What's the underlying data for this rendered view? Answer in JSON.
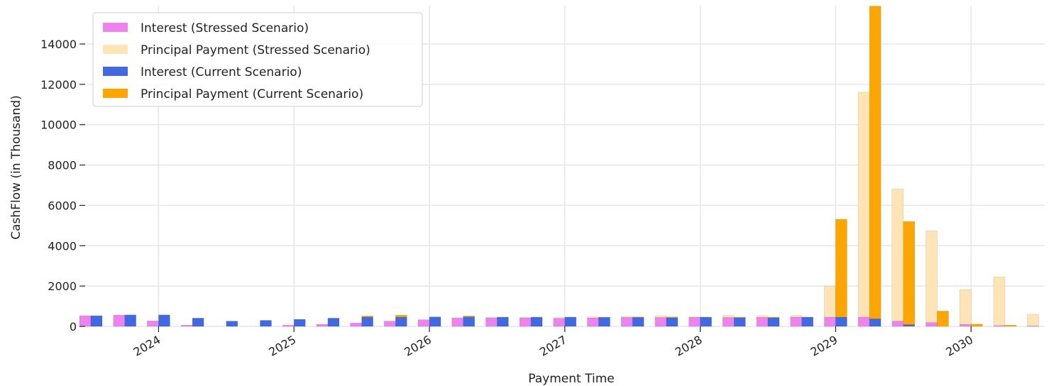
{
  "chart_data": {
    "type": "bar",
    "title": "",
    "xlabel": "Payment Time",
    "ylabel": "CashFlow (in Thousand)",
    "ylim": [
      0,
      15900
    ],
    "yticks": [
      0,
      2000,
      4000,
      6000,
      8000,
      10000,
      12000,
      14000
    ],
    "xticks": [
      "2024",
      "2025",
      "2026",
      "2027",
      "2028",
      "2029",
      "2030"
    ],
    "grid": true,
    "legend_position": "top-left",
    "x": [
      "2023-07",
      "2023-10",
      "2024-01",
      "2024-04",
      "2024-07",
      "2024-10",
      "2025-01",
      "2025-04",
      "2025-07",
      "2025-10",
      "2026-01",
      "2026-04",
      "2026-07",
      "2026-10",
      "2027-01",
      "2027-04",
      "2027-07",
      "2027-10",
      "2028-01",
      "2028-04",
      "2028-07",
      "2028-10",
      "2029-01",
      "2029-04",
      "2029-07",
      "2029-10",
      "2030-01",
      "2030-04",
      "2030-07"
    ],
    "series": [
      {
        "name": "Interest (Stressed Scenario)",
        "color": "#ee82ee",
        "stack": "stressed",
        "values": [
          530,
          560,
          270,
          60,
          0,
          0,
          60,
          100,
          170,
          260,
          330,
          410,
          420,
          420,
          400,
          420,
          440,
          440,
          450,
          440,
          450,
          460,
          460,
          460,
          260,
          190,
          100,
          40,
          20
        ]
      },
      {
        "name": "Principal Payment (Stressed Scenario)",
        "color": "#ffe4b5",
        "stack": "stressed",
        "values": [
          0,
          0,
          0,
          0,
          0,
          0,
          0,
          0,
          0,
          0,
          0,
          20,
          20,
          20,
          30,
          50,
          50,
          90,
          20,
          100,
          80,
          80,
          1540,
          11150,
          6560,
          4550,
          1720,
          2410,
          580
        ]
      },
      {
        "name": "Interest (Current Scenario)",
        "color": "#4169e1",
        "stack": "current",
        "values": [
          530,
          570,
          570,
          410,
          260,
          300,
          350,
          410,
          460,
          460,
          470,
          470,
          460,
          460,
          460,
          440,
          440,
          430,
          460,
          430,
          430,
          460,
          460,
          380,
          90,
          0,
          0,
          0,
          0
        ]
      },
      {
        "name": "Principal Payment (Current Scenario)",
        "color": "#ffa500",
        "stack": "current",
        "values": [
          0,
          0,
          0,
          0,
          0,
          0,
          0,
          0,
          60,
          100,
          0,
          50,
          0,
          0,
          0,
          20,
          30,
          40,
          0,
          30,
          30,
          0,
          4850,
          15500,
          5110,
          760,
          110,
          60,
          0
        ]
      }
    ]
  }
}
